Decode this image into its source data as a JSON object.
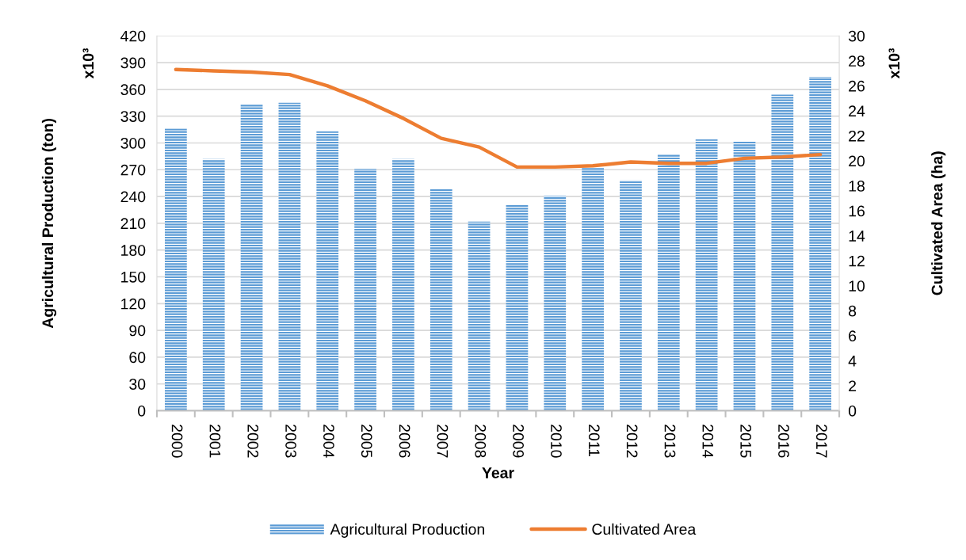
{
  "chart_data": {
    "type": "bar",
    "categories": [
      "2000",
      "2001",
      "2002",
      "2003",
      "2004",
      "2005",
      "2006",
      "2007",
      "2008",
      "2009",
      "2010",
      "2011",
      "2012",
      "2013",
      "2014",
      "2015",
      "2016",
      "2017"
    ],
    "xlabel": "Year",
    "ylabel": "Agricultural Production (ton)",
    "y2label": "Cultivated Area (ha)",
    "annotations": [
      "x10³",
      "x10³"
    ],
    "series": [
      {
        "name": "Agricultural Production",
        "color": "#5b9bd5",
        "values": [
          316,
          282,
          344,
          345,
          313,
          271,
          282,
          249,
          212,
          231,
          241,
          273,
          258,
          287,
          304,
          302,
          354,
          374
        ]
      },
      {
        "name": "Cultivated Area",
        "type": "line",
        "axis": "y2",
        "color": "#ed7d31",
        "values": [
          27.3,
          27.2,
          27.1,
          26.9,
          26.0,
          24.8,
          23.4,
          21.8,
          21.1,
          19.5,
          19.5,
          19.6,
          19.9,
          19.8,
          19.8,
          20.2,
          20.3,
          20.5
        ]
      }
    ],
    "ylim": [
      0,
      420
    ],
    "yticks": [
      0,
      30,
      60,
      90,
      120,
      150,
      180,
      210,
      240,
      270,
      300,
      330,
      360,
      390,
      420
    ],
    "y2lim": [
      0,
      30
    ],
    "y2ticks": [
      0,
      2,
      4,
      6,
      8,
      10,
      12,
      14,
      16,
      18,
      20,
      22,
      24,
      26,
      28,
      30
    ],
    "grid": "y",
    "legend": "bottom",
    "line_style": "solid"
  }
}
